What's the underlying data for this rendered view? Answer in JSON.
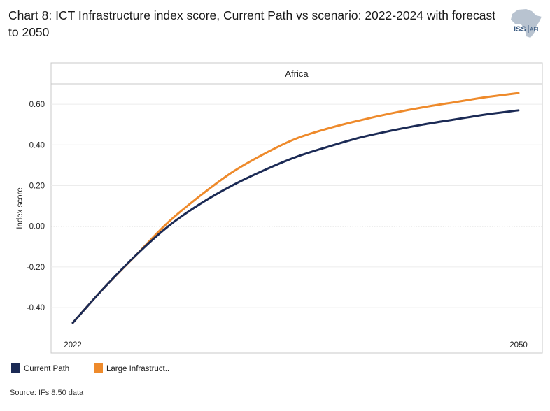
{
  "title": "Chart 8: ICT Infrastructure index score, Current Path vs scenario: 2022-2024 with forecast to 2050",
  "logo": {
    "text_left": "ISS",
    "text_right": "AFI"
  },
  "source": "Source: IFs 8.50 data",
  "colors": {
    "current_path": "#1b2a55",
    "large_infrastructure": "#ee8a2b"
  },
  "chart_data": {
    "type": "line",
    "panel_title": "Africa",
    "ylabel": "Index score",
    "xlim": [
      2022,
      2050
    ],
    "ylim": [
      -0.52,
      0.7
    ],
    "yticks": [
      -0.4,
      -0.2,
      0.0,
      0.2,
      0.4,
      0.6
    ],
    "ytick_labels": [
      "-0.40",
      "-0.20",
      "0.00",
      "0.20",
      "0.40",
      "0.60"
    ],
    "xticks": [
      2022,
      2050
    ],
    "xtick_labels": [
      "2022",
      "2050"
    ],
    "x": [
      2022,
      2024,
      2026,
      2028,
      2030,
      2032,
      2034,
      2036,
      2038,
      2040,
      2042,
      2044,
      2046,
      2048,
      2050
    ],
    "series": [
      {
        "name": "Current Path",
        "values": [
          -0.475,
          -0.3,
          -0.14,
          0.0,
          0.11,
          0.2,
          0.275,
          0.34,
          0.39,
          0.435,
          0.47,
          0.5,
          0.525,
          0.55,
          0.57
        ]
      },
      {
        "name": "Large Infrastruct..",
        "values": [
          -0.475,
          -0.3,
          -0.14,
          0.02,
          0.15,
          0.265,
          0.355,
          0.43,
          0.48,
          0.52,
          0.555,
          0.585,
          0.61,
          0.635,
          0.655
        ]
      }
    ],
    "legend_position": "bottom-left"
  }
}
